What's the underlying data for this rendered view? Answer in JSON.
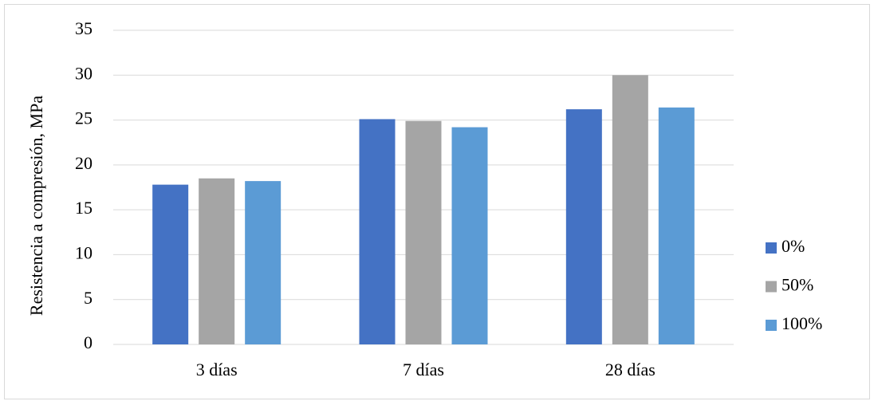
{
  "chart_data": {
    "type": "bar",
    "y_label": "Resistencia a compresión, MPa",
    "categories": [
      "3 días",
      "7 días",
      "28 días"
    ],
    "series": [
      {
        "name": "0%",
        "color": "#4472c4",
        "values": [
          17.8,
          25.1,
          26.2
        ]
      },
      {
        "name": "50%",
        "color": "#a5a5a5",
        "values": [
          18.5,
          24.9,
          30.0
        ]
      },
      {
        "name": "100%",
        "color": "#5b9bd5",
        "values": [
          18.2,
          24.2,
          26.4
        ]
      }
    ],
    "ylim": [
      0,
      35
    ],
    "yticks": [
      0,
      5,
      10,
      15,
      20,
      25,
      30,
      35
    ],
    "grid": true,
    "legend": "right"
  }
}
